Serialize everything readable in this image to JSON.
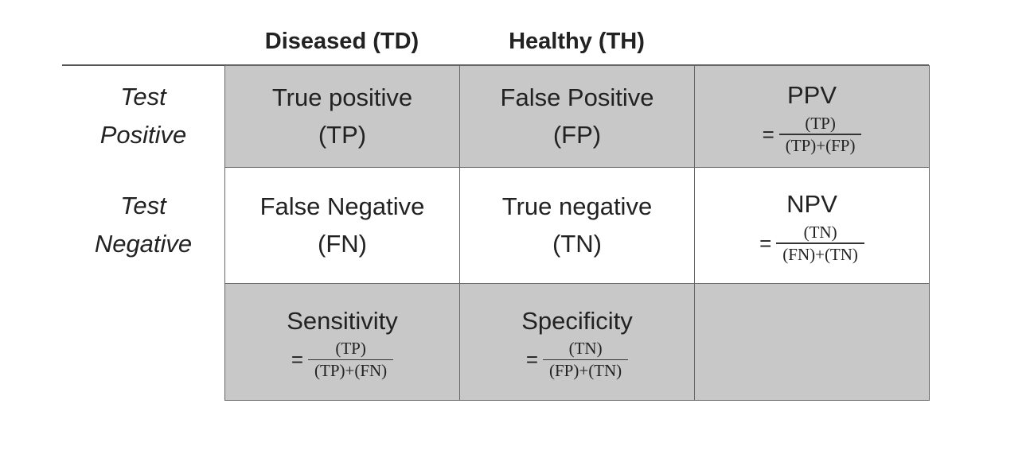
{
  "header": {
    "columns": [
      "Diseased (TD)",
      "Healthy (TH)"
    ]
  },
  "rows": [
    {
      "label": [
        "Test",
        "Positive"
      ],
      "cells": [
        {
          "title": "True positive",
          "abbr": "(TP)"
        },
        {
          "title": "False Positive",
          "abbr": "(FP)"
        },
        {
          "title": "PPV",
          "formula": {
            "prefix": "=",
            "numerator": "(TP)",
            "denominator": "(TP)+(FP)"
          }
        }
      ]
    },
    {
      "label": [
        "Test",
        "Negative"
      ],
      "cells": [
        {
          "title": "False Negative",
          "abbr": "(FN)"
        },
        {
          "title": "True negative",
          "abbr": "(TN)"
        },
        {
          "title": "NPV",
          "formula": {
            "prefix": "=",
            "numerator": "(TN)",
            "denominator": "(FN)+(TN)"
          }
        }
      ]
    }
  ],
  "footer": {
    "cells": [
      {
        "title": "Sensitivity",
        "formula": {
          "prefix": "=",
          "numerator": "(TP)",
          "denominator": "(TP)+(FN)"
        }
      },
      {
        "title": "Specificity",
        "formula": {
          "prefix": "=",
          "numerator": "(TN)",
          "denominator": "(FP)+(TN)"
        }
      }
    ]
  }
}
